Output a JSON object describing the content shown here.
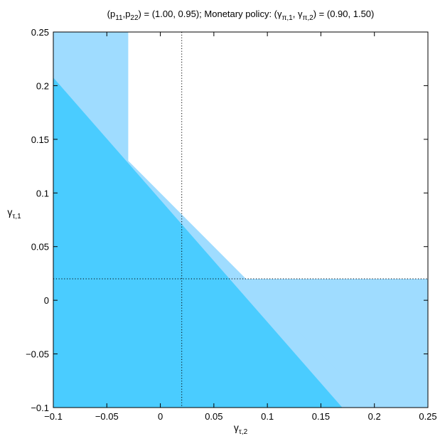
{
  "chart_data": {
    "type": "area",
    "title": {
      "parts": [
        {
          "t": "(p",
          "sub": false
        },
        {
          "t": "11",
          "sub": true
        },
        {
          "t": ",p",
          "sub": false
        },
        {
          "t": "22",
          "sub": true
        },
        {
          "t": ") = (1.00, 0.95); Monetary policy: (γ",
          "sub": false
        },
        {
          "t": "π,1",
          "sub": true
        },
        {
          "t": ", γ",
          "sub": false
        },
        {
          "t": "π,2",
          "sub": true
        },
        {
          "t": ") = (0.90, 1.50)",
          "sub": false
        }
      ]
    },
    "xlabel": {
      "main": "γ",
      "sub": "τ,2"
    },
    "ylabel": {
      "main": "γ",
      "sub": "τ,1"
    },
    "xlim": [
      -0.1,
      0.25
    ],
    "ylim": [
      -0.1,
      0.25
    ],
    "xticks": [
      -0.1,
      -0.05,
      0,
      0.05,
      0.1,
      0.15,
      0.2,
      0.25
    ],
    "yticks": [
      -0.1,
      -0.05,
      0,
      0.05,
      0.1,
      0.15,
      0.2,
      0.25
    ],
    "xtick_labels": [
      "−0.1",
      "−0.05",
      "0",
      "0.05",
      "0.1",
      "0.15",
      "0.2",
      "0.25"
    ],
    "ytick_labels": [
      "−0.1",
      "−0.05",
      "0",
      "0.05",
      "0.1",
      "0.15",
      "0.2",
      "0.25"
    ],
    "grid": false,
    "regions": [
      {
        "id": "light-region-vertical",
        "color": "#9fdcff",
        "polygon": [
          [
            -0.1,
            -0.1
          ],
          [
            -0.03,
            -0.1
          ],
          [
            -0.03,
            0.25
          ],
          [
            -0.1,
            0.25
          ]
        ]
      },
      {
        "id": "light-region-horizontal",
        "color": "#9fdcff",
        "polygon": [
          [
            -0.1,
            -0.1
          ],
          [
            0.25,
            -0.1
          ],
          [
            0.25,
            0.02
          ],
          [
            -0.1,
            0.02
          ]
        ]
      },
      {
        "id": "light-region-diagonal",
        "color": "#9fdcff",
        "polygon": [
          [
            -0.1,
            -0.1
          ],
          [
            0.2,
            -0.1
          ],
          [
            -0.1,
            0.2
          ]
        ]
      },
      {
        "id": "dark-region-diagonal",
        "color": "#4accff",
        "polygon": [
          [
            -0.1,
            -0.1
          ],
          [
            0.17,
            -0.1
          ],
          [
            -0.1,
            0.2075
          ]
        ]
      }
    ],
    "reference_lines": [
      {
        "id": "vertical-dotted-line",
        "orientation": "vertical",
        "value": 0.02,
        "style": "dotted"
      },
      {
        "id": "horizontal-dotted-line",
        "orientation": "horizontal",
        "value": 0.02,
        "style": "dotted"
      }
    ]
  }
}
